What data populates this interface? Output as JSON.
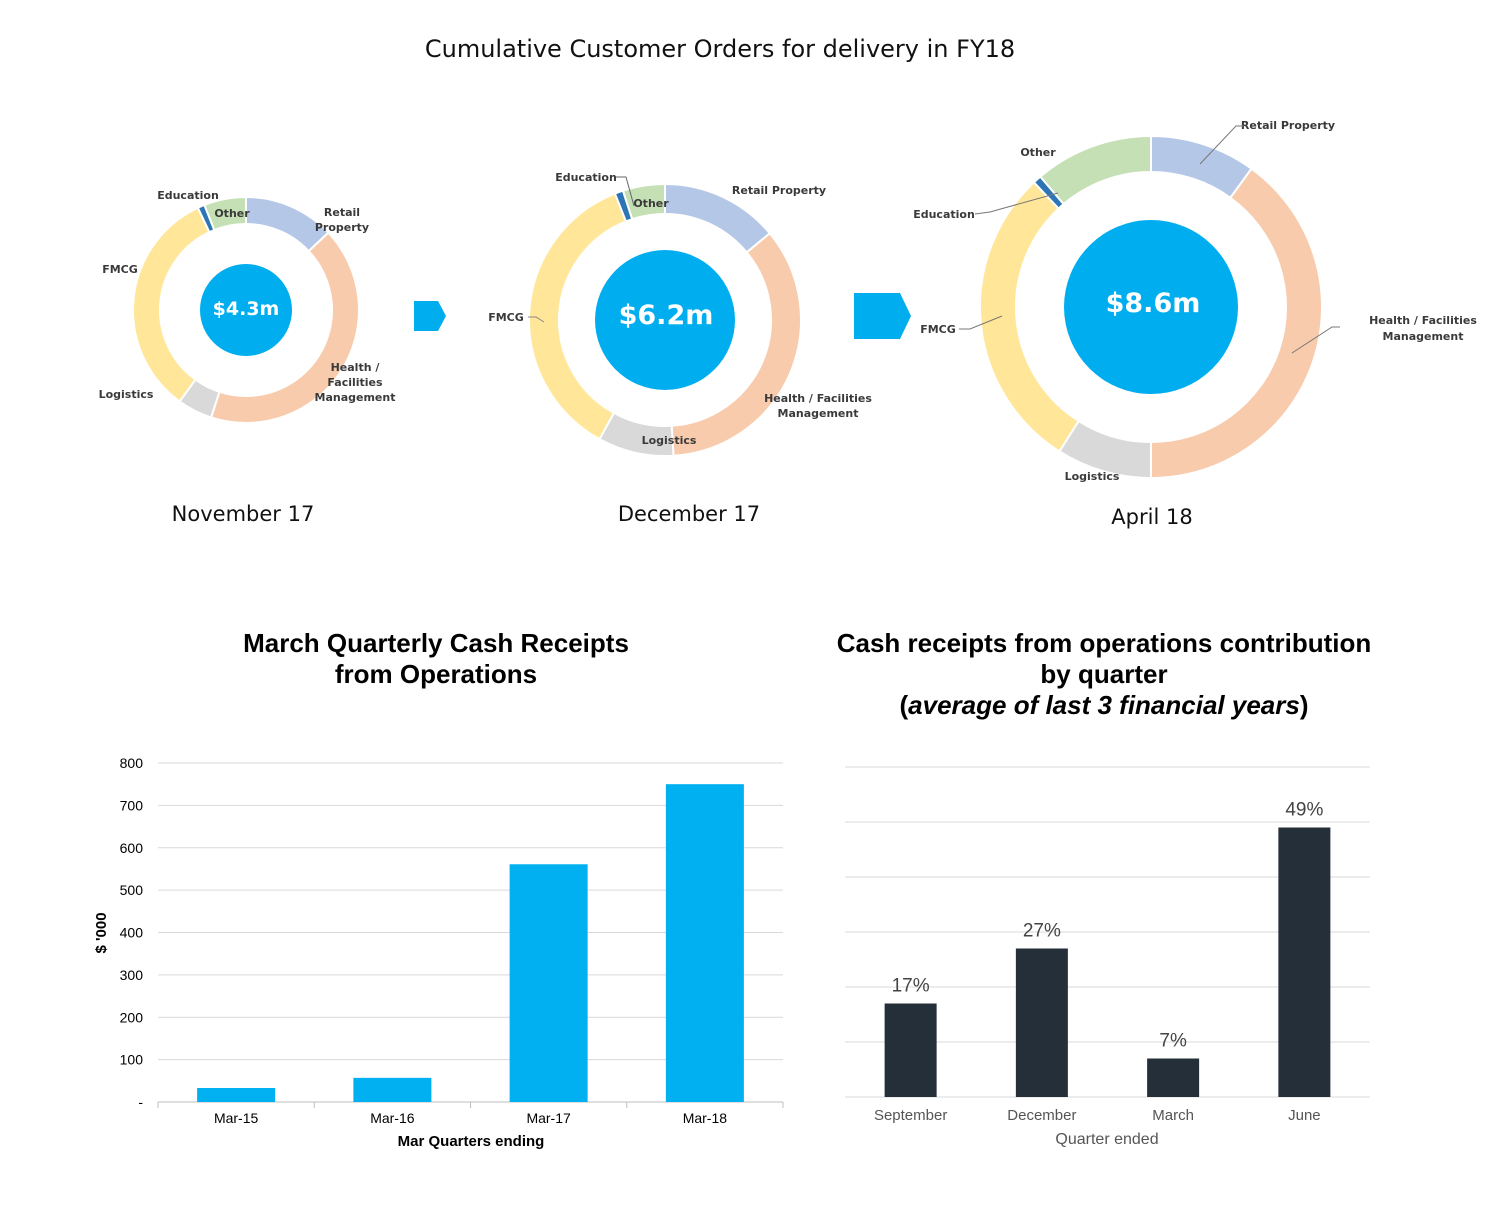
{
  "main_title": "Cumulative Customer Orders for delivery in FY18",
  "colors": {
    "retail": "#b4c7e7",
    "health": "#f8cbad",
    "logistics": "#d9d9d9",
    "fmcg": "#ffe699",
    "education": "#2e75b6",
    "other": "#c5e0b4",
    "center": "#00aeef",
    "arrow": "#00aeef",
    "bar_blue": "#00b0f0",
    "bar_dark": "#252f3a"
  },
  "chart_data": [
    {
      "type": "pie",
      "variant": "donut",
      "center_value": "$4.3m",
      "period": "November 17",
      "slices": [
        {
          "label": "Retail Property",
          "value": 13
        },
        {
          "label": "Health / Facilities Management",
          "value": 42
        },
        {
          "label": "Logistics",
          "value": 5
        },
        {
          "label": "FMCG",
          "value": 33
        },
        {
          "label": "Education",
          "value": 1
        },
        {
          "label": "Other",
          "value": 6
        }
      ],
      "labels_text": {
        "education": "Education",
        "other": "Other",
        "retail": [
          "Retail",
          "Property"
        ],
        "fmcg": "FMCG",
        "health": [
          "Health /",
          "Facilities",
          "Management"
        ],
        "logistics": "Logistics"
      }
    },
    {
      "type": "pie",
      "variant": "donut",
      "center_value": "$6.2m",
      "period": "December 17",
      "slices": [
        {
          "label": "Retail Property",
          "value": 14
        },
        {
          "label": "Health / Facilities Management",
          "value": 35
        },
        {
          "label": "Logistics",
          "value": 9
        },
        {
          "label": "FMCG",
          "value": 36
        },
        {
          "label": "Education",
          "value": 1
        },
        {
          "label": "Other",
          "value": 5
        }
      ],
      "labels_text": {
        "education": "Education",
        "other": "Other",
        "retail": "Retail Property",
        "fmcg": "FMCG",
        "health": [
          "Health / Facilities",
          "Management"
        ],
        "logistics": "Logistics"
      }
    },
    {
      "type": "pie",
      "variant": "donut",
      "center_value": "$8.6m",
      "period": "April 18",
      "slices": [
        {
          "label": "Retail Property",
          "value": 10
        },
        {
          "label": "Health / Facilities Management",
          "value": 40
        },
        {
          "label": "Logistics",
          "value": 9
        },
        {
          "label": "FMCG",
          "value": 29
        },
        {
          "label": "Education",
          "value": 0.8
        },
        {
          "label": "Other",
          "value": 11.2
        }
      ],
      "labels_text": {
        "education": "Education",
        "other": "Other",
        "retail": "Retail Property",
        "fmcg": "FMCG",
        "health": [
          "Health / Facilities",
          "Management"
        ],
        "logistics": "Logistics"
      }
    },
    {
      "type": "bar",
      "title": [
        "March Quarterly Cash Receipts",
        "from Operations"
      ],
      "categories": [
        "Mar-15",
        "Mar-16",
        "Mar-17",
        "Mar-18"
      ],
      "values": [
        33,
        57,
        561,
        750
      ],
      "ylabel": "$ '000",
      "xlabel": "Mar Quarters ending",
      "ylim": [
        0,
        800
      ],
      "yticks": [
        "-",
        "100",
        "200",
        "300",
        "400",
        "500",
        "600",
        "700",
        "800"
      ],
      "grid": true
    },
    {
      "type": "bar",
      "title": [
        "Cash receipts from operations contribution",
        "by quarter"
      ],
      "subtitle_parts": [
        "(",
        "average of last 3 financial years",
        ")"
      ],
      "categories": [
        "September",
        "December",
        "March",
        "June"
      ],
      "values": [
        17,
        27,
        7,
        49
      ],
      "data_labels": [
        "17%",
        "27%",
        "7%",
        "49%"
      ],
      "xlabel": "Quarter ended",
      "ylim": [
        0,
        60
      ],
      "grid": true
    }
  ]
}
